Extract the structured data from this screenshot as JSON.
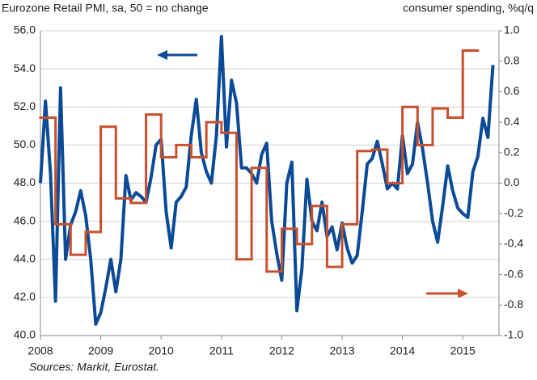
{
  "chart_data": {
    "type": "line",
    "title": "Eurozone Retail PMI, sa, 50 = no change",
    "y2_label": "consumer spending, %q/q",
    "source": "Sources: Markit, Eurostat.",
    "xlim": [
      2008,
      2015.6
    ],
    "xticks": [
      2008,
      2009,
      2010,
      2011,
      2012,
      2013,
      2014,
      2015
    ],
    "ylim": [
      40,
      56
    ],
    "yticks": [
      {
        "value": 40,
        "label": "40.0"
      },
      {
        "value": 42,
        "label": "42.0"
      },
      {
        "value": 44,
        "label": "44.0"
      },
      {
        "value": 46,
        "label": "46.0"
      },
      {
        "value": 48,
        "label": "48.0"
      },
      {
        "value": 50,
        "label": "50.0"
      },
      {
        "value": 52,
        "label": "52.0"
      },
      {
        "value": 54,
        "label": "54.0"
      },
      {
        "value": 56,
        "label": "56.0"
      }
    ],
    "y2lim": [
      -1,
      1
    ],
    "y2ticks": [
      {
        "value": -1,
        "label": "-1.0"
      },
      -0.8,
      -0.6,
      -0.4,
      -0.2,
      {
        "value": 0,
        "label": "0.0"
      },
      0.2,
      0.4,
      0.6,
      0.8,
      {
        "value": 1,
        "label": "1.0"
      }
    ],
    "grid": true,
    "series": [
      {
        "name": "Eurozone Retail PMI",
        "color": "#0b4a96",
        "step": false,
        "x": [
          2008.0,
          2008.0833,
          2008.1667,
          2008.25,
          2008.3333,
          2008.4167,
          2008.5,
          2008.5833,
          2008.6667,
          2008.75,
          2008.8333,
          2008.9167,
          2009.0,
          2009.0833,
          2009.1667,
          2009.25,
          2009.3333,
          2009.4167,
          2009.5,
          2009.5833,
          2009.6667,
          2009.75,
          2009.8333,
          2009.9167,
          2010.0,
          2010.0833,
          2010.1667,
          2010.25,
          2010.3333,
          2010.4167,
          2010.5,
          2010.5833,
          2010.6667,
          2010.75,
          2010.8333,
          2010.9167,
          2011.0,
          2011.0833,
          2011.1667,
          2011.25,
          2011.3333,
          2011.4167,
          2011.5,
          2011.5833,
          2011.6667,
          2011.75,
          2011.8333,
          2011.9167,
          2012.0,
          2012.0833,
          2012.1667,
          2012.25,
          2012.3333,
          2012.4167,
          2012.5,
          2012.5833,
          2012.6667,
          2012.75,
          2012.8333,
          2012.9167,
          2013.0,
          2013.0833,
          2013.1667,
          2013.25,
          2013.3333,
          2013.4167,
          2013.5,
          2013.5833,
          2013.6667,
          2013.75,
          2013.8333,
          2013.9167,
          2014.0,
          2014.0833,
          2014.1667,
          2014.25,
          2014.3333,
          2014.4167,
          2014.5,
          2014.5833,
          2014.6667,
          2014.75,
          2014.8333,
          2014.9167,
          2015.0,
          2015.0833,
          2015.1667,
          2015.25,
          2015.3333,
          2015.4167,
          2015.5
        ],
        "values": [
          48.0,
          52.3,
          48.5,
          41.8,
          53.0,
          44.0,
          45.8,
          46.5,
          47.6,
          46.3,
          44.0,
          40.6,
          41.2,
          42.5,
          44.0,
          42.3,
          44.0,
          48.4,
          47.1,
          47.5,
          47.3,
          47.0,
          48.3,
          50.0,
          50.3,
          46.5,
          44.6,
          47.0,
          47.3,
          47.8,
          50.5,
          52.4,
          49.6,
          48.6,
          48.0,
          50.5,
          55.7,
          49.9,
          53.4,
          52.2,
          48.8,
          48.8,
          48.5,
          48.0,
          49.5,
          50.1,
          46.0,
          44.3,
          42.9,
          48.0,
          49.1,
          41.3,
          43.5,
          48.2,
          46.0,
          45.5,
          47.0,
          45.2,
          45.7,
          44.5,
          45.9,
          44.6,
          43.8,
          44.2,
          46.5,
          49.0,
          49.3,
          50.2,
          49.0,
          47.7,
          48.0,
          47.7,
          50.5,
          48.5,
          49.0,
          51.2,
          49.8,
          48.0,
          46.0,
          44.9,
          46.8,
          48.9,
          47.6,
          46.7,
          46.4,
          46.2,
          48.6,
          49.4,
          51.4,
          50.4,
          54.2
        ]
      },
      {
        "name": "consumer spending",
        "color": "#c8502c",
        "axis": "y2",
        "step": true,
        "x": [
          2008.0,
          2008.25,
          2008.5,
          2008.75,
          2009.0,
          2009.25,
          2009.5,
          2009.75,
          2010.0,
          2010.25,
          2010.5,
          2010.75,
          2011.0,
          2011.25,
          2011.5,
          2011.75,
          2012.0,
          2012.25,
          2012.5,
          2012.75,
          2013.0,
          2013.25,
          2013.5,
          2013.75,
          2014.0,
          2014.25,
          2014.5,
          2014.75,
          2015.0
        ],
        "values": [
          0.43,
          -0.27,
          -0.47,
          -0.32,
          0.37,
          -0.1,
          -0.13,
          0.45,
          0.17,
          0.25,
          0.17,
          0.4,
          0.33,
          -0.5,
          0.1,
          -0.58,
          -0.3,
          -0.4,
          -0.15,
          -0.55,
          -0.27,
          0.21,
          0.22,
          0.0,
          0.5,
          0.25,
          0.49,
          0.43,
          0.87
        ]
      }
    ]
  }
}
